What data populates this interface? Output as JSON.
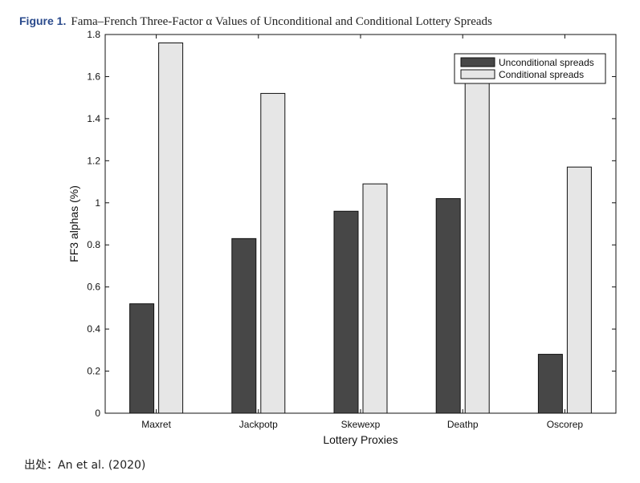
{
  "figure": {
    "label": "Figure 1.",
    "title": "Fama–French Three-Factor α Values of Unconditional and Conditional Lottery Spreads"
  },
  "source": "出处：An et al. (2020)",
  "chart_data": {
    "type": "bar",
    "categories": [
      "Maxret",
      "Jackpotp",
      "Skewexp",
      "Deathp",
      "Oscorep"
    ],
    "series": [
      {
        "name": "Unconditional spreads",
        "values": [
          0.52,
          0.83,
          0.96,
          1.02,
          0.28
        ],
        "color": "#474747"
      },
      {
        "name": "Conditional spreads",
        "values": [
          1.76,
          1.52,
          1.09,
          1.59,
          1.17
        ],
        "color": "#e6e6e6"
      }
    ],
    "xlabel": "Lottery Proxies",
    "ylabel": "FF3 alphas (%)",
    "ylim": [
      0,
      1.8
    ],
    "yticks": [
      0,
      0.2,
      0.4,
      0.6,
      0.8,
      1,
      1.2,
      1.4,
      1.6,
      1.8
    ],
    "grid": false,
    "legend_position": "top-right"
  }
}
